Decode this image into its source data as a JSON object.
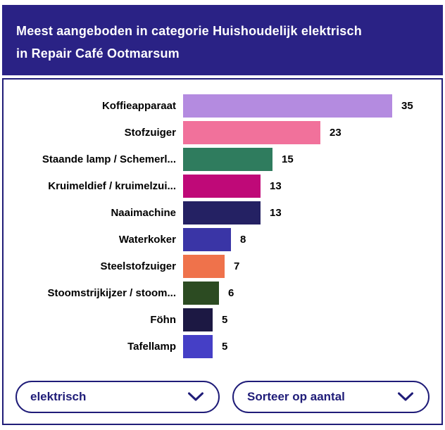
{
  "header": {
    "title": "Meest aangeboden in categorie Huishoudelijk elektrisch in Repair Café Ootmarsum",
    "title_lines": [
      "Meest aangeboden in categorie Huishoudelijk elektrisch",
      "in Repair Café Ootmarsum"
    ]
  },
  "chart_data": {
    "type": "bar",
    "orientation": "horizontal",
    "title": "Meest aangeboden in categorie Huishoudelijk elektrisch in Repair Café Ootmarsum",
    "categories": [
      "Koffieapparaat",
      "Stofzuiger",
      "Staande lamp / Schemerl...",
      "Kruimeldief / kruimelzui...",
      "Naaimachine",
      "Waterkoker",
      "Steelstofzuiger",
      "Stoomstrijkijzer / stoom...",
      "Föhn",
      "Tafellamp"
    ],
    "values": [
      35,
      23,
      15,
      13,
      13,
      8,
      7,
      6,
      5,
      5
    ],
    "bar_colors": [
      "#B48BE0",
      "#F1719B",
      "#2F7C5E",
      "#BF0978",
      "#242163",
      "#3A35A6",
      "#EF724B",
      "#2C4B22",
      "#1C1843",
      "#453FC6"
    ],
    "xlabel": "",
    "ylabel": "",
    "xlim": [
      0,
      35
    ],
    "grid": false,
    "legend": false,
    "value_labels_shown": true
  },
  "filters": {
    "category_select": {
      "value": "elektrisch",
      "icon": "chevron-down-icon"
    },
    "sort_select": {
      "value": "Sorteer op aantal",
      "icon": "chevron-down-icon"
    }
  },
  "colors": {
    "header_bg": "#2A2285",
    "header_text": "#FFFFFF",
    "card_border": "#201D78",
    "dropdown_accent": "#1F1C78",
    "label_text": "#000000"
  }
}
